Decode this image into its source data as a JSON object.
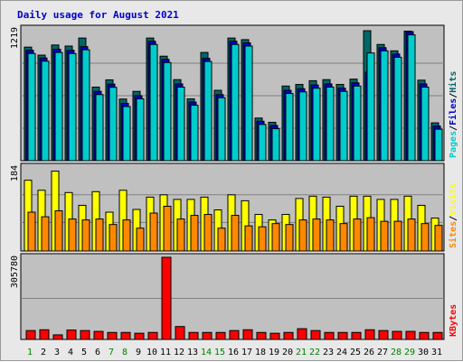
{
  "title": "Daily usage for August 2021",
  "colors": {
    "hits": "#006666",
    "files": "#0000cc",
    "pages": "#00cccc",
    "visits": "#ffff00",
    "sites": "#ff8800",
    "kbytes": "#ff0000",
    "slash": "#000000",
    "weekday_label": "#000000",
    "weekend_label": "#008000",
    "panel_bg": "#c0c0c0"
  },
  "legend": {
    "top": [
      "Hits",
      "/",
      "Files",
      "/",
      "Pages"
    ],
    "middle": [
      "Visits",
      "/",
      "Sites"
    ],
    "bottom": [
      "KBytes"
    ]
  },
  "chart_data": [
    {
      "type": "bar",
      "title": "Daily usage for August 2021",
      "categories": [
        "1",
        "2",
        "3",
        "4",
        "5",
        "6",
        "7",
        "8",
        "9",
        "10",
        "11",
        "12",
        "13",
        "14",
        "15",
        "16",
        "17",
        "18",
        "19",
        "20",
        "21",
        "22",
        "23",
        "24",
        "25",
        "26",
        "27",
        "28",
        "29",
        "30",
        "31"
      ],
      "weekend_days": [
        "1",
        "7",
        "8",
        "14",
        "15",
        "21",
        "22",
        "28",
        "29"
      ],
      "y_max_label": "1219",
      "ylim": [
        0,
        1219
      ],
      "series": [
        {
          "name": "Hits",
          "values": [
            1065,
            990,
            1085,
            1075,
            1150,
            690,
            758,
            578,
            650,
            1150,
            980,
            760,
            580,
            1015,
            660,
            1150,
            1135,
            400,
            360,
            700,
            715,
            750,
            760,
            715,
            765,
            1219,
            1090,
            1030,
            1215,
            755,
            355
          ]
        },
        {
          "name": "Files",
          "values": [
            1035,
            963,
            1045,
            1035,
            1070,
            650,
            718,
            538,
            610,
            1120,
            950,
            720,
            550,
            960,
            620,
            1120,
            1105,
            370,
            330,
            660,
            675,
            710,
            720,
            680,
            730,
            830,
            1060,
            1000,
            1210,
            720,
            325
          ]
        },
        {
          "name": "Pages",
          "values": [
            1005,
            933,
            1015,
            1005,
            1040,
            620,
            688,
            508,
            580,
            1090,
            920,
            690,
            520,
            930,
            590,
            1090,
            1075,
            340,
            300,
            630,
            645,
            680,
            690,
            650,
            700,
            1010,
            1030,
            970,
            1180,
            690,
            295
          ]
        }
      ]
    },
    {
      "type": "bar",
      "categories": [
        "1",
        "2",
        "3",
        "4",
        "5",
        "6",
        "7",
        "8",
        "9",
        "10",
        "11",
        "12",
        "13",
        "14",
        "15",
        "16",
        "17",
        "18",
        "19",
        "20",
        "21",
        "22",
        "23",
        "24",
        "25",
        "26",
        "27",
        "28",
        "29",
        "30",
        "31"
      ],
      "y_max_label": "184",
      "ylim": [
        0,
        184
      ],
      "series": [
        {
          "name": "Visits",
          "values": [
            155,
            133,
            175,
            128,
            100,
            130,
            85,
            133,
            91,
            118,
            123,
            113,
            113,
            118,
            90,
            123,
            110,
            80,
            68,
            80,
            115,
            120,
            118,
            98,
            120,
            120,
            113,
            113,
            120,
            100,
            72
          ]
        },
        {
          "name": "Sites",
          "values": [
            85,
            75,
            88,
            70,
            68,
            70,
            58,
            68,
            50,
            83,
            98,
            70,
            78,
            80,
            50,
            78,
            55,
            53,
            60,
            58,
            68,
            70,
            68,
            60,
            70,
            73,
            65,
            65,
            70,
            60,
            56
          ]
        }
      ]
    },
    {
      "type": "bar",
      "categories": [
        "1",
        "2",
        "3",
        "4",
        "5",
        "6",
        "7",
        "8",
        "9",
        "10",
        "11",
        "12",
        "13",
        "14",
        "15",
        "16",
        "17",
        "18",
        "19",
        "20",
        "21",
        "22",
        "23",
        "24",
        "25",
        "26",
        "27",
        "28",
        "29",
        "30",
        "31"
      ],
      "y_max_label": "305780",
      "ylim": [
        0,
        305780
      ],
      "series": [
        {
          "name": "KBytes",
          "values": [
            33000,
            36000,
            17000,
            35000,
            33000,
            30000,
            26000,
            26000,
            23000,
            26000,
            305780,
            48000,
            26000,
            26000,
            26000,
            33000,
            36000,
            26000,
            23000,
            26000,
            40000,
            33000,
            26000,
            26000,
            26000,
            36000,
            33000,
            30000,
            30000,
            26000,
            26000
          ]
        }
      ]
    }
  ]
}
